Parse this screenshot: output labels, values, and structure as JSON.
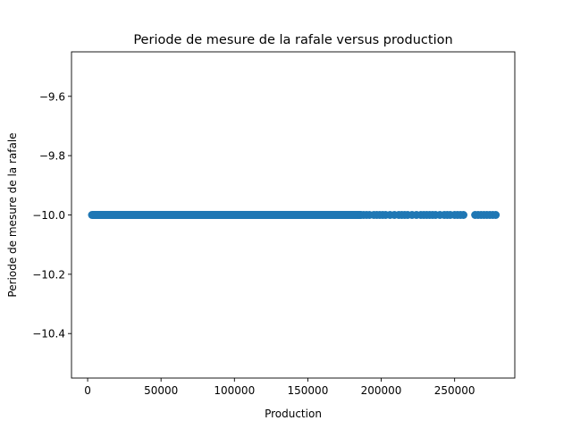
{
  "chart_data": {
    "type": "scatter",
    "title": "Periode de mesure de la rafale versus production",
    "xlabel": "Production",
    "ylabel": "Periode de mesure de la rafale",
    "xlim": [
      -11000,
      291000
    ],
    "ylim": [
      -10.55,
      -9.45
    ],
    "x_ticks": [
      0,
      50000,
      100000,
      150000,
      200000,
      250000
    ],
    "y_ticks": [
      -9.6,
      -9.8,
      -10.0,
      -10.2,
      -10.4
    ],
    "x_tick_labels": [
      "0",
      "50000",
      "100000",
      "150000",
      "200000",
      "250000"
    ],
    "y_tick_labels": [
      "−9.6",
      "−9.8",
      "−10.0",
      "−10.2",
      "−10.4"
    ],
    "grid": false,
    "marker_color": "#1f77b4",
    "series": [
      {
        "y_value": -10.0,
        "continuous_x_range": [
          3000,
          186000
        ],
        "x": [
          186000,
          188000,
          190000,
          192000,
          195000,
          197000,
          199000,
          201000,
          203000,
          206000,
          209000,
          212000,
          214000,
          216000,
          218000,
          221000,
          224000,
          227000,
          229000,
          231000,
          233000,
          235000,
          237000,
          240000,
          243000,
          245000,
          247000,
          250000,
          252000,
          254000,
          256000,
          264000,
          266000,
          268000,
          270000,
          272000,
          274000,
          276000,
          278000
        ]
      }
    ]
  }
}
